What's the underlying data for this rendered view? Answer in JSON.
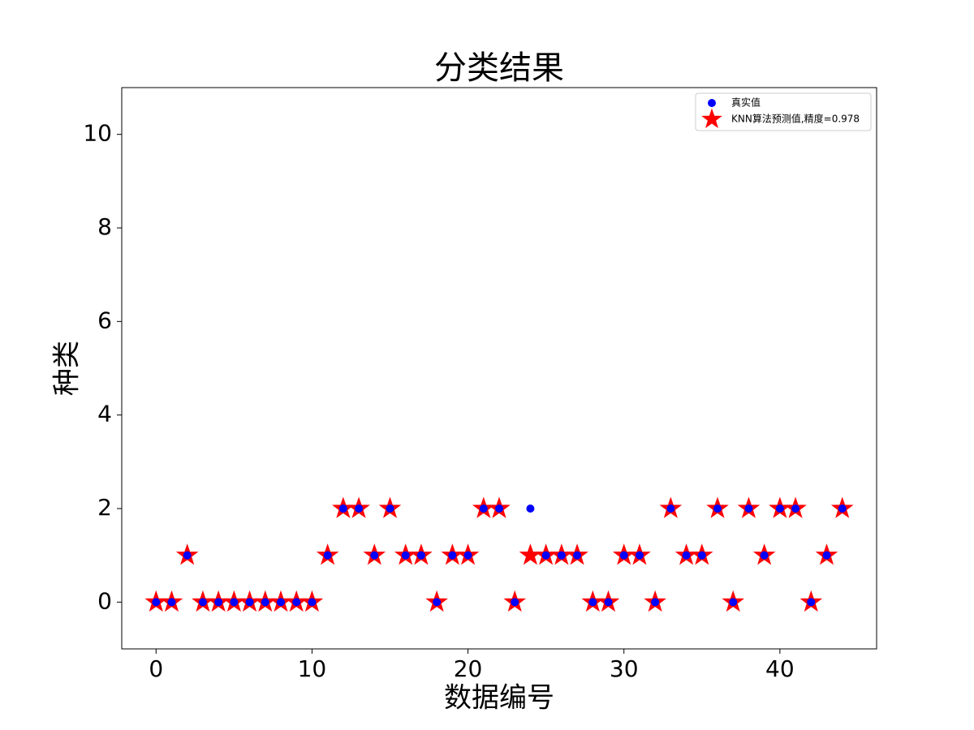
{
  "chart_data": {
    "type": "scatter",
    "title": "分类结果",
    "x_label": "数据编号",
    "y_label": "种类",
    "x": [
      0,
      1,
      2,
      3,
      4,
      5,
      6,
      7,
      8,
      9,
      10,
      11,
      12,
      13,
      14,
      15,
      16,
      17,
      18,
      19,
      20,
      21,
      22,
      23,
      24,
      25,
      26,
      27,
      28,
      29,
      30,
      31,
      32,
      33,
      34,
      35,
      36,
      37,
      38,
      39,
      40,
      41,
      42,
      43,
      44
    ],
    "series": [
      {
        "name": "真实值",
        "color": "#0000ff",
        "marker": "circle",
        "values": [
          0,
          0,
          1,
          0,
          0,
          0,
          0,
          0,
          0,
          0,
          0,
          1,
          2,
          2,
          1,
          2,
          1,
          1,
          0,
          1,
          1,
          2,
          2,
          0,
          2,
          1,
          1,
          1,
          0,
          0,
          1,
          1,
          0,
          2,
          1,
          1,
          2,
          0,
          2,
          1,
          2,
          2,
          0,
          1,
          2
        ]
      },
      {
        "name": "KNN算法预测值,精度=0.978",
        "color": "#ff0000",
        "marker": "star",
        "values": [
          0,
          0,
          1,
          0,
          0,
          0,
          0,
          0,
          0,
          0,
          0,
          1,
          2,
          2,
          1,
          2,
          1,
          1,
          0,
          1,
          1,
          2,
          2,
          0,
          1,
          1,
          1,
          1,
          0,
          0,
          1,
          1,
          0,
          2,
          1,
          1,
          2,
          0,
          2,
          1,
          2,
          2,
          0,
          1,
          2
        ]
      }
    ],
    "xlim": [
      -2.2,
      46.2
    ],
    "ylim": [
      -1,
      11
    ],
    "xticks": [
      0,
      10,
      20,
      30,
      40
    ],
    "yticks": [
      0,
      2,
      4,
      6,
      8,
      10
    ],
    "legend": "upper right"
  }
}
